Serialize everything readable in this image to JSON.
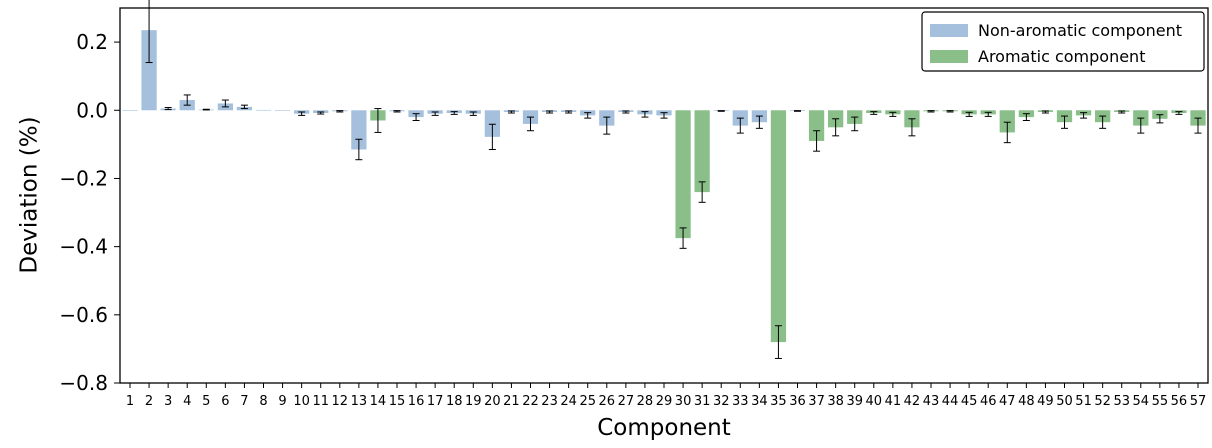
{
  "chart_data": {
    "type": "bar",
    "xlabel": "Component",
    "ylabel": "Deviation (%)",
    "ylim": [
      -0.8,
      0.3
    ],
    "yticks": [
      0.2,
      0.0,
      -0.2,
      -0.4,
      -0.6,
      -0.8
    ],
    "ytick_labels": [
      "0.2",
      "0.0",
      "−0.2",
      "−0.4",
      "−0.6",
      "−0.8"
    ],
    "categories": [
      "1",
      "2",
      "3",
      "4",
      "5",
      "6",
      "7",
      "8",
      "9",
      "10",
      "11",
      "12",
      "13",
      "14",
      "15",
      "16",
      "17",
      "18",
      "19",
      "20",
      "21",
      "22",
      "23",
      "24",
      "25",
      "26",
      "27",
      "28",
      "29",
      "30",
      "31",
      "32",
      "33",
      "34",
      "35",
      "36",
      "37",
      "38",
      "39",
      "40",
      "41",
      "42",
      "43",
      "44",
      "45",
      "46",
      "47",
      "48",
      "49",
      "50",
      "51",
      "52",
      "53",
      "54",
      "55",
      "56",
      "57"
    ],
    "values": [
      0,
      0.235,
      0.005,
      0.03,
      0.002,
      0.02,
      0.01,
      0.001,
      0,
      -0.01,
      -0.008,
      -0.003,
      -0.115,
      -0.03,
      -0.003,
      -0.02,
      -0.01,
      -0.008,
      -0.01,
      -0.078,
      -0.005,
      -0.04,
      -0.005,
      -0.005,
      -0.015,
      -0.045,
      -0.005,
      -0.012,
      -0.015,
      -0.375,
      -0.24,
      -0.002,
      -0.045,
      -0.035,
      -0.68,
      -0.002,
      -0.09,
      -0.05,
      -0.04,
      -0.008,
      -0.012,
      -0.05,
      -0.003,
      -0.003,
      -0.012,
      -0.012,
      -0.065,
      -0.02,
      -0.005,
      -0.035,
      -0.015,
      -0.035,
      -0.005,
      -0.045,
      -0.025,
      -0.008,
      -0.045
    ],
    "errors": [
      0,
      0.095,
      0.003,
      0.015,
      0.001,
      0.01,
      0.005,
      0,
      0,
      0.005,
      0.003,
      0.002,
      0.03,
      0.035,
      0.002,
      0.01,
      0.005,
      0.004,
      0.005,
      0.037,
      0.003,
      0.02,
      0.003,
      0.003,
      0.008,
      0.025,
      0.003,
      0.008,
      0.008,
      0.03,
      0.03,
      0.001,
      0.022,
      0.018,
      0.048,
      0.001,
      0.03,
      0.025,
      0.02,
      0.004,
      0.006,
      0.025,
      0.002,
      0.002,
      0.006,
      0.006,
      0.03,
      0.01,
      0.003,
      0.018,
      0.008,
      0.018,
      0.003,
      0.022,
      0.012,
      0.004,
      0.022
    ],
    "group": [
      "N",
      "N",
      "N",
      "N",
      "N",
      "N",
      "N",
      "N",
      "N",
      "N",
      "N",
      "N",
      "N",
      "A",
      "N",
      "N",
      "N",
      "N",
      "N",
      "N",
      "N",
      "N",
      "N",
      "N",
      "N",
      "N",
      "N",
      "N",
      "N",
      "A",
      "A",
      "N",
      "N",
      "N",
      "A",
      "N",
      "A",
      "A",
      "A",
      "A",
      "A",
      "A",
      "A",
      "A",
      "A",
      "A",
      "A",
      "A",
      "A",
      "A",
      "A",
      "A",
      "A",
      "A",
      "A",
      "A",
      "A"
    ],
    "series": [
      {
        "key": "N",
        "name": "Non-aromatic component",
        "color": "#a5c0dc"
      },
      {
        "key": "A",
        "name": "Aromatic component",
        "color": "#8abf8a"
      }
    ],
    "legend_position": "top-right",
    "grid": false
  }
}
